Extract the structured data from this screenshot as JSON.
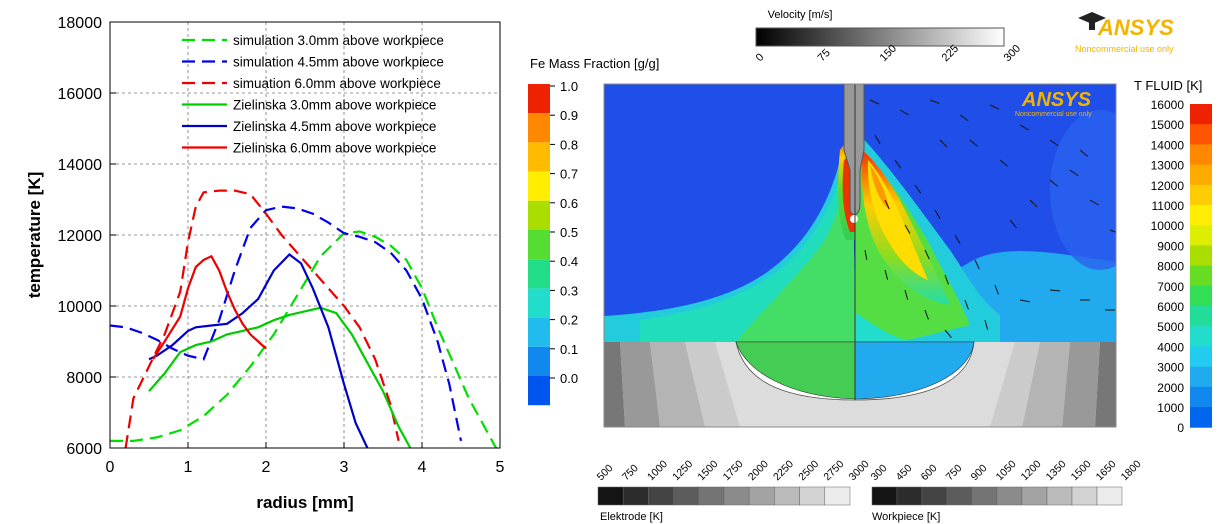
{
  "chart_data": [
    {
      "type": "line",
      "title": "",
      "xlabel": "radius [mm]",
      "ylabel": "temperature [K]",
      "xlim": [
        0,
        5
      ],
      "ylim": [
        6000,
        18000
      ],
      "xticks": [
        0,
        1,
        2,
        3,
        4,
        5
      ],
      "yticks": [
        6000,
        8000,
        10000,
        12000,
        14000,
        16000,
        18000
      ],
      "grid": true,
      "legend_position": "top-right",
      "series": [
        {
          "name": "simulation 3.0mm above workpiece",
          "color": "#00e000",
          "dash": "dashed",
          "x": [
            0.0,
            0.3,
            0.6,
            0.9,
            1.2,
            1.5,
            1.8,
            2.1,
            2.4,
            2.7,
            3.0,
            3.2,
            3.4,
            3.6,
            3.8,
            4.0,
            4.2,
            4.4,
            4.6,
            4.8,
            4.95
          ],
          "y": [
            6200,
            6200,
            6300,
            6500,
            6900,
            7500,
            8300,
            9200,
            10300,
            11400,
            12050,
            12100,
            11950,
            11700,
            11300,
            10500,
            9400,
            8400,
            7400,
            6600,
            6000
          ]
        },
        {
          "name": "simulation 4.5mm above workpiece",
          "color": "#0000ee",
          "dash": "dashed",
          "x": [
            0.0,
            0.2,
            0.4,
            0.6,
            0.8,
            1.0,
            1.2,
            1.4,
            1.6,
            1.8,
            2.0,
            2.2,
            2.4,
            2.6,
            2.8,
            3.0,
            3.2,
            3.4,
            3.6,
            3.8,
            4.0,
            4.2,
            4.35,
            4.5
          ],
          "y": [
            9450,
            9400,
            9250,
            9050,
            8800,
            8600,
            8500,
            9600,
            11000,
            12200,
            12700,
            12800,
            12750,
            12600,
            12350,
            12050,
            11950,
            11800,
            11500,
            11000,
            10200,
            9000,
            7800,
            6200
          ]
        },
        {
          "name": "simuation 6.0mm above workpiece",
          "color": "#ee0000",
          "dash": "dashed",
          "x": [
            0.2,
            0.3,
            0.5,
            0.7,
            0.9,
            1.0,
            1.1,
            1.2,
            1.4,
            1.6,
            1.8,
            2.0,
            2.2,
            2.4,
            2.6,
            2.8,
            3.0,
            3.2,
            3.4,
            3.6,
            3.7
          ],
          "y": [
            6000,
            7400,
            8300,
            9200,
            10400,
            11800,
            12800,
            13200,
            13250,
            13250,
            13150,
            12600,
            12000,
            11500,
            11000,
            10500,
            10000,
            9400,
            8500,
            7200,
            6200
          ]
        },
        {
          "name": "Zielinska 3.0mm above workpiece",
          "color": "#00cc00",
          "dash": "solid",
          "x": [
            0.5,
            0.7,
            0.9,
            1.1,
            1.3,
            1.5,
            1.7,
            1.9,
            2.1,
            2.3,
            2.5,
            2.7,
            2.9,
            3.1,
            3.3,
            3.5,
            3.7,
            3.85
          ],
          "y": [
            7600,
            8100,
            8700,
            8900,
            9000,
            9200,
            9300,
            9400,
            9600,
            9750,
            9850,
            9950,
            9800,
            9200,
            8400,
            7600,
            6600,
            6000
          ]
        },
        {
          "name": "Zielinska 4.5mm above workpiece",
          "color": "#0000cc",
          "dash": "solid",
          "x": [
            0.5,
            0.6,
            0.8,
            1.0,
            1.1,
            1.3,
            1.5,
            1.7,
            1.9,
            2.1,
            2.3,
            2.45,
            2.6,
            2.8,
            3.0,
            3.15,
            3.3
          ],
          "y": [
            8500,
            8600,
            8900,
            9300,
            9400,
            9450,
            9500,
            9800,
            10200,
            11000,
            11450,
            11200,
            10500,
            9400,
            7800,
            6700,
            6000
          ]
        },
        {
          "name": "Zielinska 6.0mm above workpiece",
          "color": "#ee0000",
          "dash": "solid",
          "x": [
            0.55,
            0.7,
            0.9,
            1.0,
            1.1,
            1.2,
            1.3,
            1.4,
            1.5,
            1.6,
            1.7,
            1.8,
            1.9,
            2.0
          ],
          "y": [
            8500,
            9000,
            9700,
            10500,
            11100,
            11300,
            11400,
            11000,
            10400,
            9900,
            9500,
            9200,
            9000,
            8800
          ]
        }
      ]
    },
    {
      "type": "heatmap",
      "watermark": "ANSYS",
      "watermark_subtext": "Noncommercial use only",
      "velocity_bar": {
        "title": "Velocity [m/s]",
        "ticks": [
          "0",
          "75",
          "150",
          "225",
          "300"
        ]
      },
      "fe_mass_fraction_bar": {
        "title": "Fe Mass Fraction [g/g]",
        "labels": [
          "1.0",
          "0.9",
          "0.8",
          "0.7",
          "0.6",
          "0.5",
          "0.4",
          "0.3",
          "0.2",
          "0.1",
          "0.0"
        ],
        "colors": [
          "#ee2200",
          "#ff8800",
          "#ffbb00",
          "#ffee00",
          "#aadd00",
          "#55dd33",
          "#22dd88",
          "#22ddcc",
          "#22bbee",
          "#1188ee",
          "#0055ee"
        ]
      },
      "t_fluid_bar": {
        "title": "T FLUID [K]",
        "labels": [
          "16000",
          "15000",
          "14000",
          "13000",
          "12000",
          "11000",
          "10000",
          "9000",
          "8000",
          "7000",
          "6000",
          "5000",
          "4000",
          "3000",
          "2000",
          "1000",
          "0"
        ],
        "colors": [
          "#ee2200",
          "#ff5500",
          "#ff8800",
          "#ffaa00",
          "#ffcc00",
          "#ffee00",
          "#ddee00",
          "#aadd00",
          "#66dd22",
          "#33dd55",
          "#22dd99",
          "#22ddcc",
          "#22ccee",
          "#22aaee",
          "#1188ee",
          "#0066ee"
        ]
      },
      "elektrode_bar": {
        "title": "Elektrode [K]",
        "ticks": [
          "500",
          "750",
          "1000",
          "1250",
          "1500",
          "1750",
          "2000",
          "2250",
          "2500",
          "2750",
          "3000"
        ]
      },
      "workpiece_bar": {
        "title": "Workpiece [K]",
        "ticks": [
          "300",
          "450",
          "600",
          "750",
          "900",
          "1050",
          "1200",
          "1350",
          "1500",
          "1650",
          "1800"
        ]
      }
    }
  ]
}
